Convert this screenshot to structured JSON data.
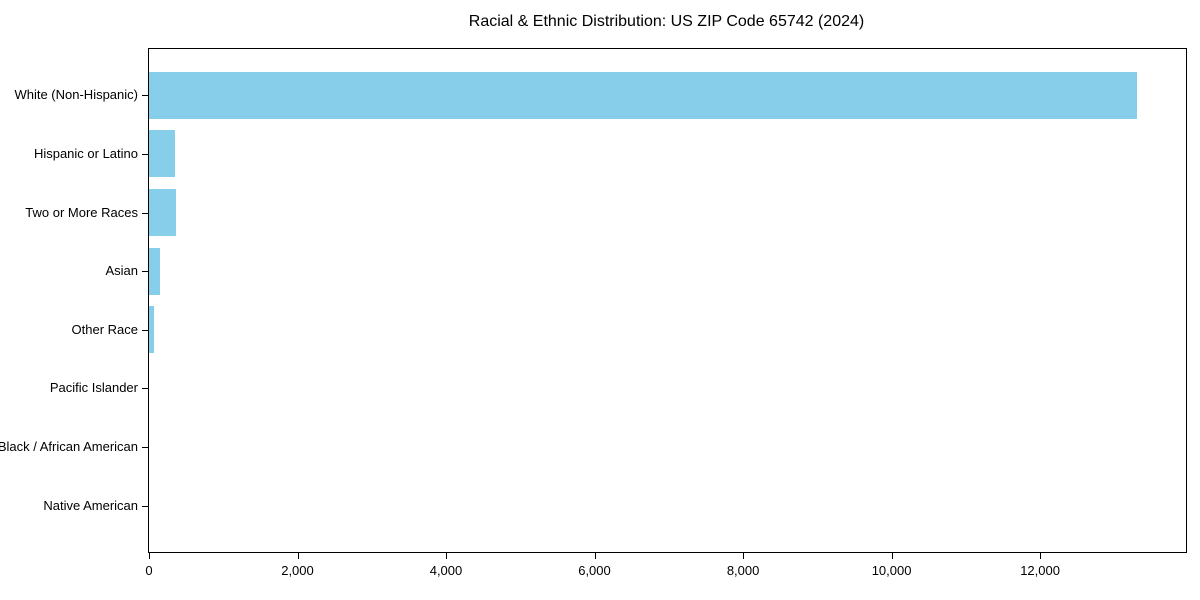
{
  "chart_data": {
    "type": "bar",
    "orientation": "horizontal",
    "title": "Racial & Ethnic Distribution: US ZIP Code 65742 (2024)",
    "categories": [
      "White (Non-Hispanic)",
      "Hispanic or Latino",
      "Two or More Races",
      "Asian",
      "Other Race",
      "Pacific Islander",
      "Black / African American",
      "Native American"
    ],
    "values": [
      13300,
      343,
      357,
      145,
      70,
      0,
      0,
      0
    ],
    "xlabel": "",
    "ylabel": "",
    "xlim": [
      0,
      13965
    ],
    "xticks": [
      0,
      2000,
      4000,
      6000,
      8000,
      10000,
      12000
    ],
    "xtick_labels": [
      "0",
      "2,000",
      "4,000",
      "6,000",
      "8,000",
      "10,000",
      "12,000"
    ],
    "bar_color": "#87CEEB",
    "axis_color": "#000000",
    "background_color": "#ffffff",
    "grid": false,
    "legend": null,
    "bar_height_fraction": 0.8,
    "category_axis_inverted": true
  }
}
